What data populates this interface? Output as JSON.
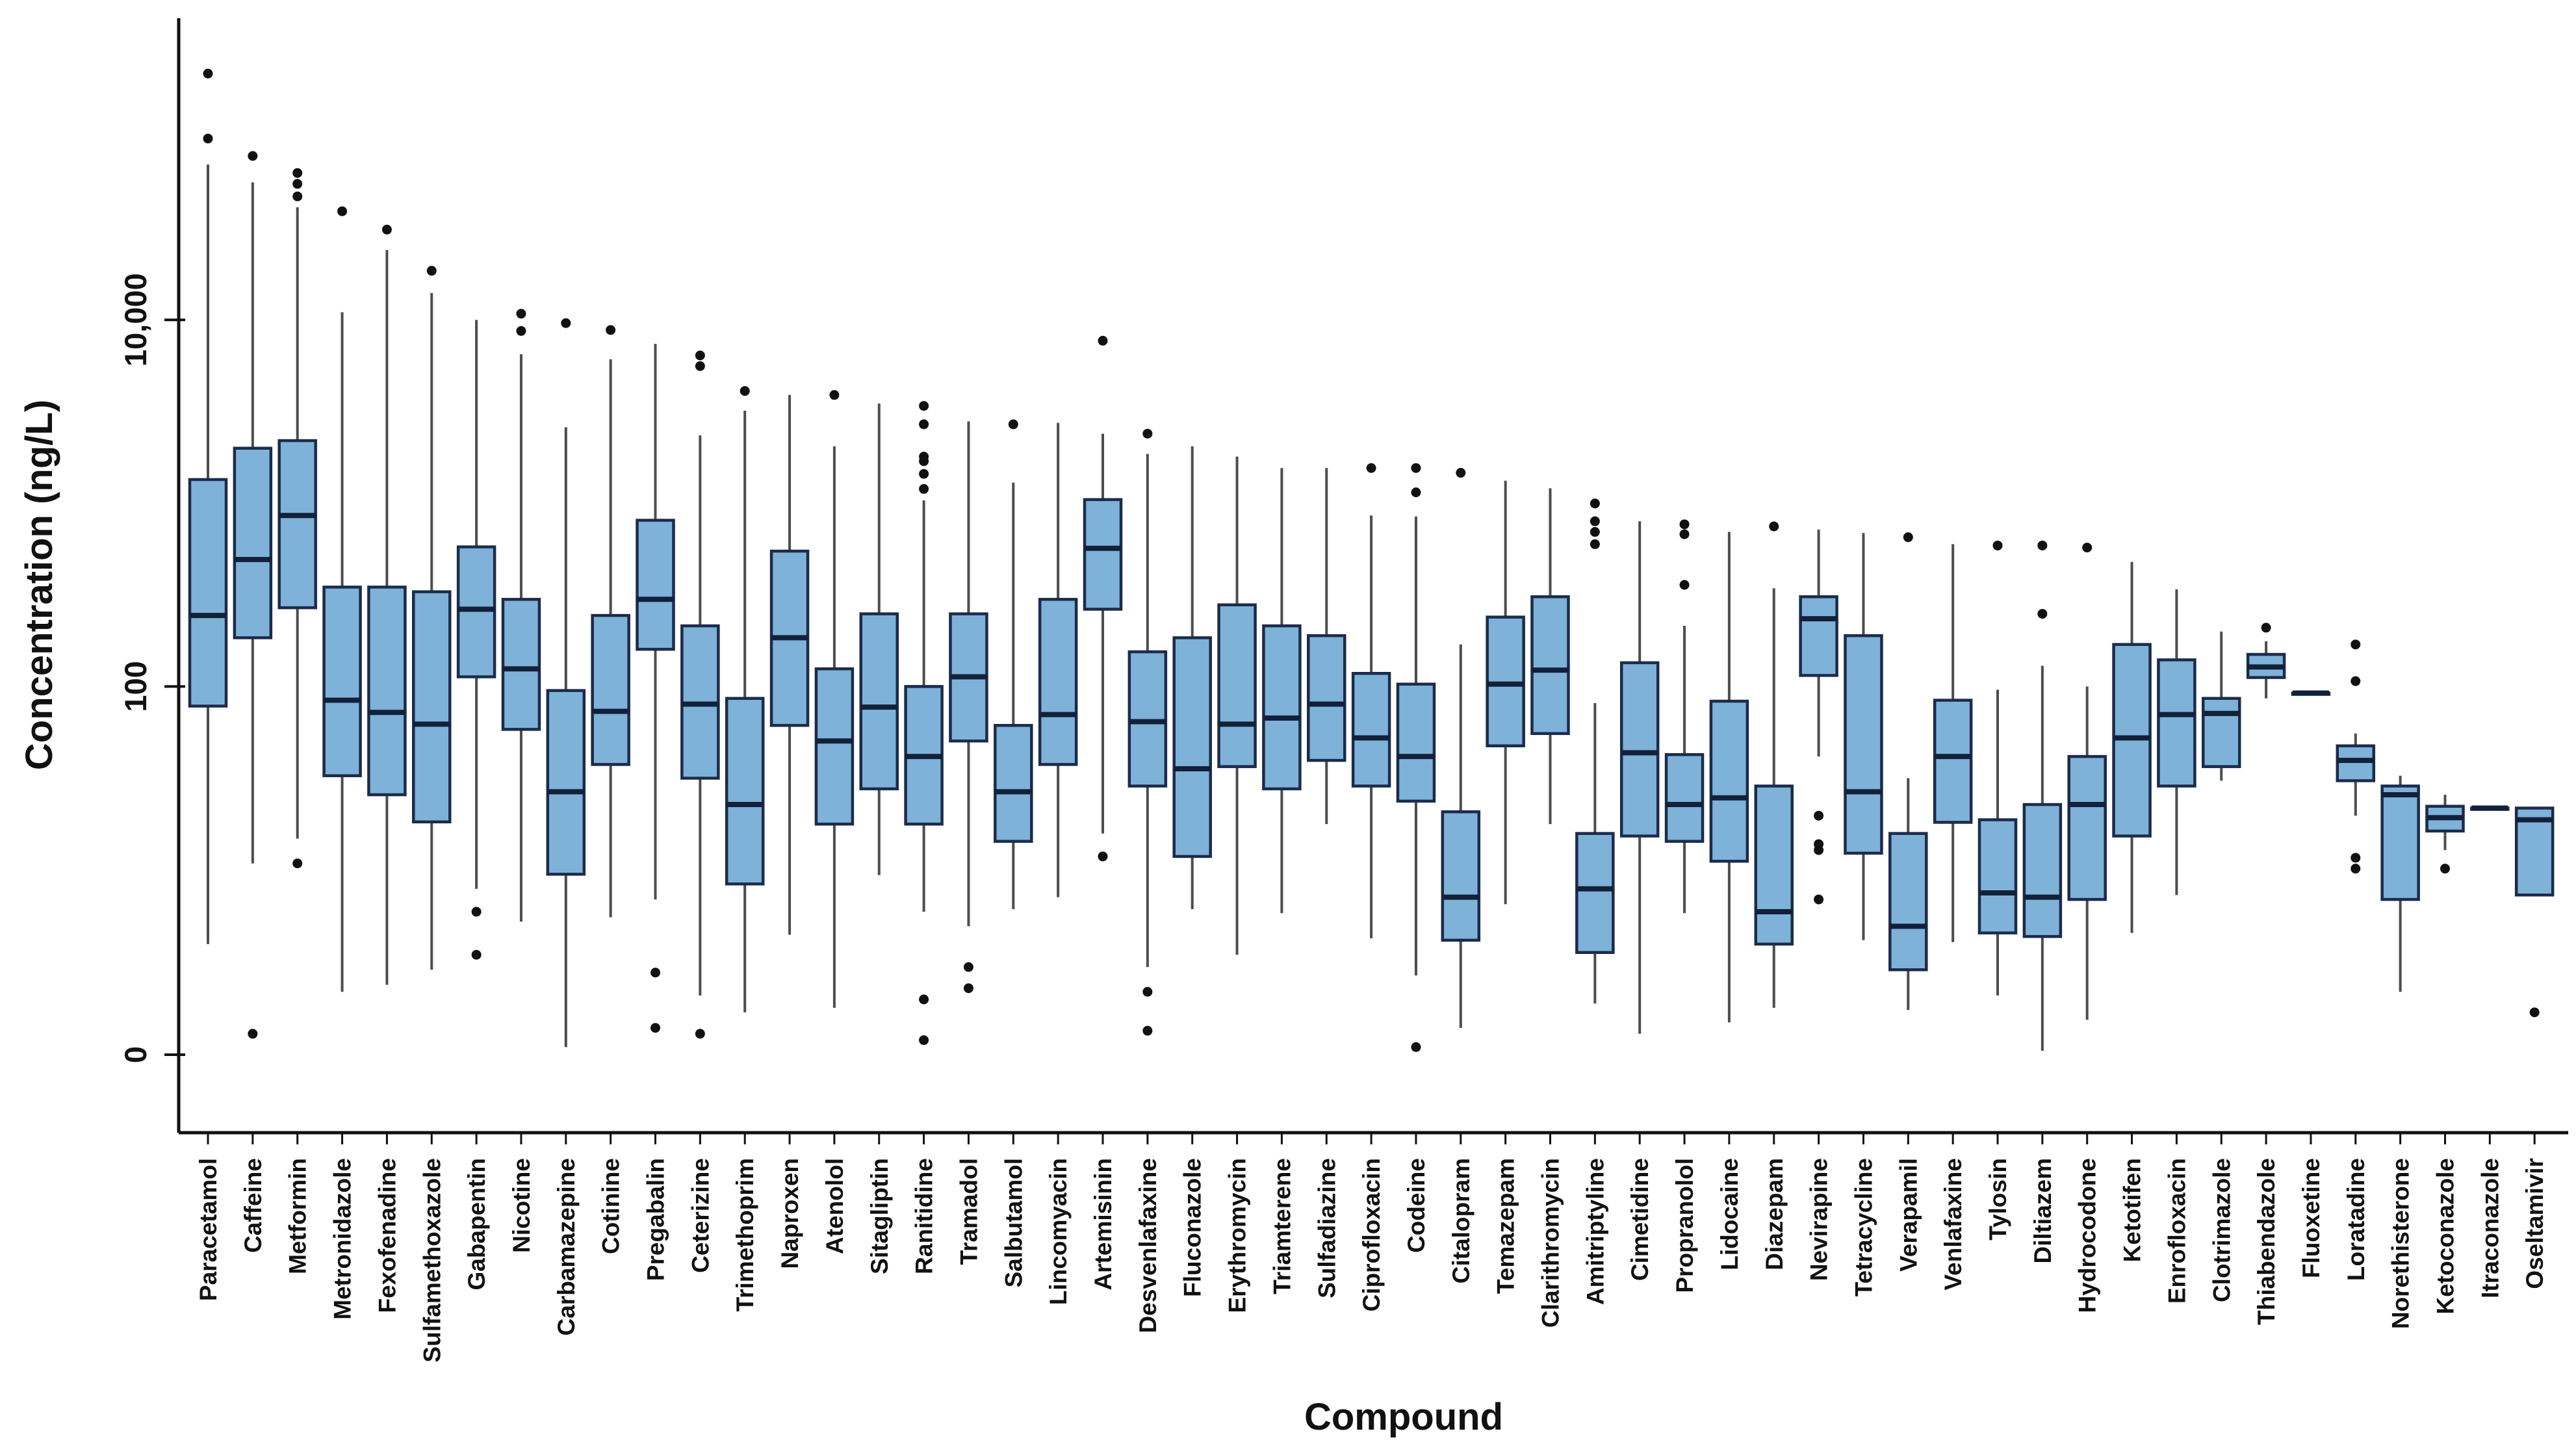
{
  "chart_data": {
    "type": "boxplot",
    "xlabel": "Compound",
    "ylabel": "Concentration (ng/L)",
    "y_scale": "log10(value+1)",
    "ylim": [
      0,
      450000
    ],
    "grid": false,
    "legend": "none",
    "y_ticks": [
      {
        "value": 0,
        "label": "0"
      },
      {
        "value": 100,
        "label": "100"
      },
      {
        "value": 10000,
        "label": "10,000"
      }
    ],
    "colors": {
      "box_fill": "#7EB2D8",
      "box_stroke": "#1C2B4A",
      "median": "#122039",
      "whisker": "#4D4D4D",
      "outlier": "#111111",
      "axis": "#111111"
    },
    "compounds": [
      {
        "name": "Paracetamol",
        "whisker_low": 3,
        "q1": 78,
        "median": 245,
        "q3": 1350,
        "whisker_high": 70000,
        "outliers": [
          219000,
          97000
        ]
      },
      {
        "name": "Caffeine",
        "whisker_low": 10,
        "q1": 185,
        "median": 495,
        "q3": 2000,
        "whisker_high": 56000,
        "outliers": [
          78000,
          0.3
        ]
      },
      {
        "name": "Metformin",
        "whisker_low": 14,
        "q1": 270,
        "median": 860,
        "q3": 2200,
        "whisker_high": 41000,
        "outliers": [
          63000,
          55000,
          47000,
          10
        ]
      },
      {
        "name": "Metronidazole",
        "whisker_low": 1.2,
        "q1": 32,
        "median": 84,
        "q3": 350,
        "whisker_high": 11000,
        "outliers": [
          39000
        ]
      },
      {
        "name": "Fexofenadine",
        "whisker_low": 1.4,
        "q1": 25,
        "median": 72,
        "q3": 350,
        "whisker_high": 24000,
        "outliers": [
          31000
        ]
      },
      {
        "name": "Sulfamethoxazole",
        "whisker_low": 1.9,
        "q1": 17.5,
        "median": 62,
        "q3": 330,
        "whisker_high": 14000,
        "outliers": [
          18500
        ]
      },
      {
        "name": "Gabapentin",
        "whisker_low": 7,
        "q1": 113,
        "median": 265,
        "q3": 580,
        "whisker_high": 10000,
        "outliers": [
          5,
          2.5
        ]
      },
      {
        "name": "Nicotine",
        "whisker_low": 4.3,
        "q1": 58,
        "median": 125,
        "q3": 300,
        "whisker_high": 6500,
        "outliers": [
          10800,
          8700
        ]
      },
      {
        "name": "Carbamazepine",
        "whisker_low": 0.1,
        "q1": 8.6,
        "median": 26,
        "q3": 95,
        "whisker_high": 2600,
        "outliers": [
          9600
        ]
      },
      {
        "name": "Cotinine",
        "whisker_low": 4.6,
        "q1": 37,
        "median": 73,
        "q3": 245,
        "whisker_high": 6100,
        "outliers": [
          8800
        ]
      },
      {
        "name": "Pregabalin",
        "whisker_low": 6,
        "q1": 160,
        "median": 300,
        "q3": 810,
        "whisker_high": 7400,
        "outliers": [
          1.8,
          0.4
        ]
      },
      {
        "name": "Ceterizine",
        "whisker_low": 1.1,
        "q1": 31,
        "median": 80,
        "q3": 215,
        "whisker_high": 2350,
        "outliers": [
          6400,
          5600,
          0.3
        ]
      },
      {
        "name": "Trimethoprim",
        "whisker_low": 0.7,
        "q1": 7.5,
        "median": 22,
        "q3": 86,
        "whisker_high": 3200,
        "outliers": [
          4100
        ]
      },
      {
        "name": "Naproxen",
        "whisker_low": 3.5,
        "q1": 61,
        "median": 185,
        "q3": 550,
        "whisker_high": 3900,
        "outliers": []
      },
      {
        "name": "Atenolol",
        "whisker_low": 0.8,
        "q1": 17,
        "median": 50,
        "q3": 125,
        "whisker_high": 2050,
        "outliers": [
          3900
        ]
      },
      {
        "name": "Sitagliptin",
        "whisker_low": 8.5,
        "q1": 27,
        "median": 77,
        "q3": 250,
        "whisker_high": 3500,
        "outliers": []
      },
      {
        "name": "Ranitidine",
        "whisker_low": 5,
        "q1": 17,
        "median": 41,
        "q3": 100,
        "whisker_high": 1040,
        "outliers": [
          3400,
          2700,
          1800,
          1700,
          1450,
          1200,
          1,
          0.2
        ]
      },
      {
        "name": "Tramadol",
        "whisker_low": 4,
        "q1": 50,
        "median": 113,
        "q3": 250,
        "whisker_high": 2800,
        "outliers": [
          2,
          1.3
        ]
      },
      {
        "name": "Salbutamol",
        "whisker_low": 5.2,
        "q1": 13.5,
        "median": 26,
        "q3": 61,
        "whisker_high": 1300,
        "outliers": [
          2700
        ]
      },
      {
        "name": "Lincomyacin",
        "whisker_low": 6.2,
        "q1": 37,
        "median": 70,
        "q3": 300,
        "whisker_high": 2750,
        "outliers": []
      },
      {
        "name": "Artemisinin",
        "whisker_low": 15,
        "q1": 265,
        "median": 570,
        "q3": 1050,
        "whisker_high": 2400,
        "outliers": [
          7700,
          11
        ]
      },
      {
        "name": "Desvenlafaxine",
        "whisker_low": 2,
        "q1": 28,
        "median": 64,
        "q3": 155,
        "whisker_high": 1860,
        "outliers": [
          2400,
          1.2,
          0.35
        ]
      },
      {
        "name": "Fluconazole",
        "whisker_low": 5.2,
        "q1": 11,
        "median": 35,
        "q3": 185,
        "whisker_high": 2050,
        "outliers": []
      },
      {
        "name": "Erythromycin",
        "whisker_low": 2.5,
        "q1": 36,
        "median": 62,
        "q3": 280,
        "whisker_high": 1800,
        "outliers": []
      },
      {
        "name": "Triamterene",
        "whisker_low": 4.9,
        "q1": 27,
        "median": 67,
        "q3": 215,
        "whisker_high": 1560,
        "outliers": []
      },
      {
        "name": "Sulfadiazine",
        "whisker_low": 17,
        "q1": 39,
        "median": 80,
        "q3": 190,
        "whisker_high": 1560,
        "outliers": []
      },
      {
        "name": "Ciprofloxacin",
        "whisker_low": 3.3,
        "q1": 28,
        "median": 52,
        "q3": 118,
        "whisker_high": 860,
        "outliers": [
          1560
        ]
      },
      {
        "name": "Codeine",
        "whisker_low": 1.7,
        "q1": 23,
        "median": 41,
        "q3": 103,
        "whisker_high": 850,
        "outliers": [
          1560,
          1150,
          0.1
        ]
      },
      {
        "name": "Citalopram",
        "whisker_low": 0.4,
        "q1": 3.2,
        "median": 6.2,
        "q3": 20,
        "whisker_high": 170,
        "outliers": [
          1470
        ]
      },
      {
        "name": "Temazepam",
        "whisker_low": 5.6,
        "q1": 47,
        "median": 103,
        "q3": 240,
        "whisker_high": 1330,
        "outliers": []
      },
      {
        "name": "Clarithromycin",
        "whisker_low": 17,
        "q1": 55,
        "median": 123,
        "q3": 310,
        "whisker_high": 1210,
        "outliers": []
      },
      {
        "name": "Amitriptyline",
        "whisker_low": 0.9,
        "q1": 2.6,
        "median": 7,
        "q3": 15,
        "whisker_high": 81,
        "outliers": [
          1000,
          800,
          700,
          600
        ]
      },
      {
        "name": "Cimetidine",
        "whisker_low": 0.3,
        "q1": 14.5,
        "median": 43,
        "q3": 135,
        "whisker_high": 800,
        "outliers": []
      },
      {
        "name": "Propranolol",
        "whisker_low": 4.9,
        "q1": 13.5,
        "median": 22,
        "q3": 42,
        "whisker_high": 215,
        "outliers": [
          770,
          680,
          360
        ]
      },
      {
        "name": "Lidocaine",
        "whisker_low": 0.5,
        "q1": 10.3,
        "median": 24,
        "q3": 83,
        "whisker_high": 700,
        "outliers": []
      },
      {
        "name": "Diazepam",
        "whisker_low": 0.8,
        "q1": 3,
        "median": 5,
        "q3": 28,
        "whisker_high": 345,
        "outliers": [
          750
        ]
      },
      {
        "name": "Nevirapine",
        "whisker_low": 41,
        "q1": 115,
        "median": 235,
        "q3": 310,
        "whisker_high": 720,
        "outliers": [
          19,
          13,
          12,
          6
        ]
      },
      {
        "name": "Tetracycline",
        "whisker_low": 3.2,
        "q1": 11.5,
        "median": 26,
        "q3": 190,
        "whisker_high": 690,
        "outliers": []
      },
      {
        "name": "Verapamil",
        "whisker_low": 0.75,
        "q1": 1.9,
        "median": 4,
        "q3": 15,
        "whisker_high": 31,
        "outliers": [
          655
        ]
      },
      {
        "name": "Venlafaxine",
        "whisker_low": 3.1,
        "q1": 17.4,
        "median": 41,
        "q3": 84,
        "whisker_high": 600,
        "outliers": []
      },
      {
        "name": "Tylosin",
        "whisker_low": 1.1,
        "q1": 3.6,
        "median": 6.6,
        "q3": 18,
        "whisker_high": 96,
        "outliers": [
          590
        ]
      },
      {
        "name": "Diltiazem",
        "whisker_low": 0.05,
        "q1": 3.4,
        "median": 6.2,
        "q3": 22,
        "whisker_high": 130,
        "outliers": [
          590,
          250
        ]
      },
      {
        "name": "Hydrocodone",
        "whisker_low": 0.55,
        "q1": 6,
        "median": 22,
        "q3": 41,
        "whisker_high": 100,
        "outliers": [
          575
        ]
      },
      {
        "name": "Ketotifen",
        "whisker_low": 3.6,
        "q1": 14.5,
        "median": 52,
        "q3": 170,
        "whisker_high": 480,
        "outliers": []
      },
      {
        "name": "Enrofloxacin",
        "whisker_low": 6.4,
        "q1": 28,
        "median": 70,
        "q3": 140,
        "whisker_high": 340,
        "outliers": []
      },
      {
        "name": "Clotrimazole",
        "whisker_low": 30,
        "q1": 36,
        "median": 71,
        "q3": 86,
        "whisker_high": 200,
        "outliers": []
      },
      {
        "name": "Thiabendazole",
        "whisker_low": 86,
        "q1": 112,
        "median": 128,
        "q3": 150,
        "whisker_high": 177,
        "outliers": [
          210
        ]
      },
      {
        "name": "Fluoxetine",
        "whisker_low": 92,
        "q1": 92,
        "median": 92,
        "q3": 92,
        "whisker_high": 92,
        "outliers": []
      },
      {
        "name": "Loratadine",
        "whisker_low": 19,
        "q1": 30,
        "median": 39,
        "q3": 47,
        "whisker_high": 55,
        "outliers": [
          170,
          107,
          10.8,
          9.3
        ]
      },
      {
        "name": "Norethisterone",
        "whisker_low": 1.2,
        "q1": 6,
        "median": 25,
        "q3": 28,
        "whisker_high": 32,
        "outliers": []
      },
      {
        "name": "Ketoconazole",
        "whisker_low": 12,
        "q1": 15.5,
        "median": 18.5,
        "q3": 21.5,
        "whisker_high": 25,
        "outliers": [
          9.3
        ]
      },
      {
        "name": "Itraconazole",
        "whisker_low": 21,
        "q1": 21,
        "median": 21,
        "q3": 21,
        "whisker_high": 21,
        "outliers": []
      },
      {
        "name": "Oseltamivir",
        "whisker_low": 6.4,
        "q1": 6.4,
        "median": 18,
        "q3": 21,
        "whisker_high": 21,
        "outliers": [
          0.7
        ]
      }
    ]
  }
}
